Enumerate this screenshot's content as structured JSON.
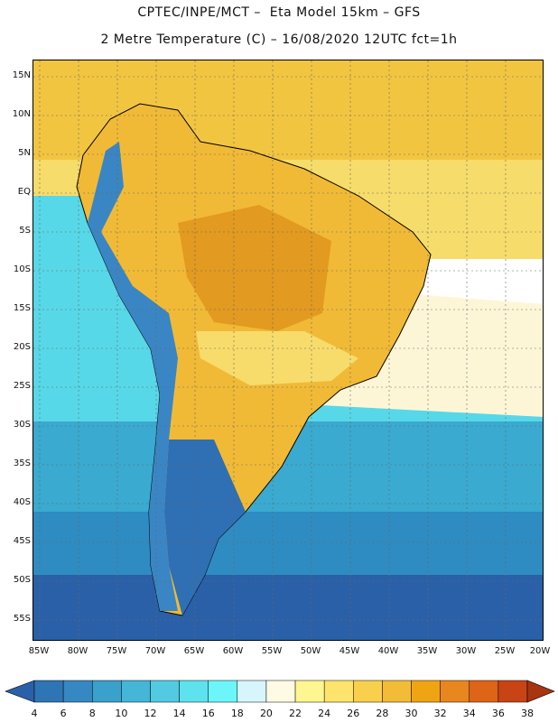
{
  "header": {
    "line1": "CPTEC/INPE/MCT –  Eta Model 15km – GFS",
    "line2": "2 Metre Temperature (C) – 16/08/2020 12UTC fct=1h"
  },
  "map": {
    "lat_labels": [
      "15N",
      "10N",
      "5N",
      "EQ",
      "5S",
      "10S",
      "15S",
      "20S",
      "25S",
      "30S",
      "35S",
      "40S",
      "45S",
      "50S",
      "55S"
    ],
    "lon_labels": [
      "85W",
      "80W",
      "75W",
      "70W",
      "65W",
      "60W",
      "55W",
      "50W",
      "45W",
      "40W",
      "35W",
      "30W",
      "25W",
      "20W"
    ],
    "ocean_colors": {
      "tropical_north": "#f2c541",
      "tropical_south": "#f6dc6a",
      "subtropical": "#fdf6d6",
      "cool": "#57d8e8",
      "cold": "#3aaad0",
      "colder": "#2e8cc2",
      "coldest": "#2a60a8"
    },
    "land_colors": {
      "hot": "#e29a20",
      "warm": "#f1ba36",
      "mild": "#f7dc6c",
      "andes": "#3a86c4",
      "patagonia": "#2f6fb4"
    }
  },
  "colorbar": {
    "labels": [
      "4",
      "6",
      "8",
      "10",
      "12",
      "14",
      "16",
      "18",
      "20",
      "22",
      "24",
      "26",
      "28",
      "30",
      "32",
      "34",
      "36",
      "38"
    ],
    "colors": [
      "#2a60a8",
      "#2e75b6",
      "#3688c2",
      "#3aa0cc",
      "#44b6d8",
      "#52cae2",
      "#5ee2ee",
      "#6cf6fa",
      "#d6f6fc",
      "#fefae4",
      "#fef690",
      "#fee46c",
      "#f8d04c",
      "#f2bc36",
      "#f0a414",
      "#e88620",
      "#de6418",
      "#c84414",
      "#a83410"
    ]
  }
}
